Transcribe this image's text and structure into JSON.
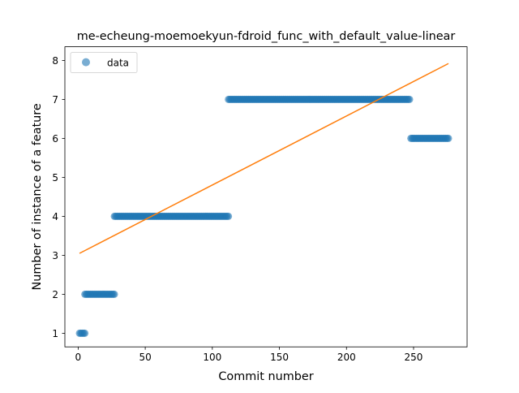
{
  "chart_data": {
    "type": "scatter",
    "title": "me-echeung-moemoekyun-fdroid_func_with_default_value-linear",
    "xlabel": "Commit number",
    "ylabel": "Number of instance of a feature",
    "xlim": [
      -9.9,
      289.9
    ],
    "ylim": [
      0.65,
      8.35
    ],
    "x_ticks": [
      0,
      50,
      100,
      150,
      200,
      250
    ],
    "y_ticks": [
      1,
      2,
      3,
      4,
      5,
      6,
      7,
      8
    ],
    "legend": {
      "position": "top-left",
      "entries": [
        "data"
      ]
    },
    "grid": false,
    "colors": {
      "scatter": "#1f77b4",
      "fit": "#ff7f0e"
    },
    "series": [
      {
        "name": "data",
        "kind": "scatter",
        "segments": [
          {
            "x_start": 1,
            "x_end": 5,
            "y": 1
          },
          {
            "x_start": 5,
            "x_end": 27,
            "y": 2
          },
          {
            "x_start": 27,
            "x_end": 112,
            "y": 4
          },
          {
            "x_start": 112,
            "x_end": 247,
            "y": 7
          },
          {
            "x_start": 248,
            "x_end": 276,
            "y": 6
          }
        ]
      },
      {
        "kind": "line",
        "x": [
          1,
          276
        ],
        "y": [
          3.05,
          7.92
        ]
      }
    ]
  }
}
